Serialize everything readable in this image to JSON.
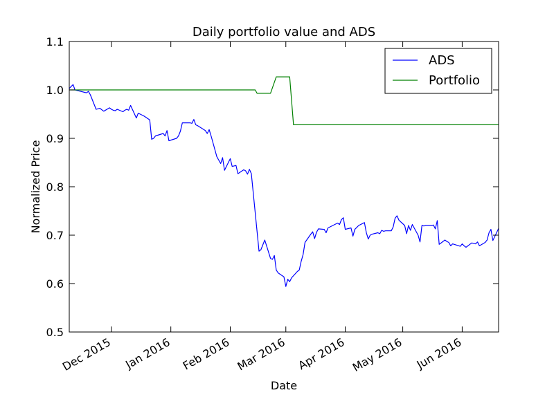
{
  "chart_data": {
    "type": "line",
    "title": "Daily portfolio value and ADS",
    "xlabel": "Date",
    "ylabel": "Normalized Price",
    "x_range": [
      "2015-11-09",
      "2016-06-20"
    ],
    "ylim": [
      0.5,
      1.1
    ],
    "y_ticks": [
      0.5,
      0.6,
      0.7,
      0.8,
      0.9,
      1.0,
      1.1
    ],
    "y_tick_labels": [
      "0.5",
      "0.6",
      "0.7",
      "0.8",
      "0.9",
      "1.0",
      "1.1"
    ],
    "x_ticks": [
      {
        "date": "2015-12-01",
        "label": "Dec 2015"
      },
      {
        "date": "2016-01-01",
        "label": "Jan 2016"
      },
      {
        "date": "2016-02-01",
        "label": "Feb 2016"
      },
      {
        "date": "2016-03-01",
        "label": "Mar 2016"
      },
      {
        "date": "2016-04-01",
        "label": "Apr 2016"
      },
      {
        "date": "2016-05-01",
        "label": "May 2016"
      },
      {
        "date": "2016-06-01",
        "label": "Jun 2016"
      }
    ],
    "grid": false,
    "legend_position": "top-right",
    "series": [
      {
        "name": "ADS",
        "color": "#0000ff",
        "points": [
          [
            "2015-11-09",
            1.003
          ],
          [
            "2015-11-10",
            1.007
          ],
          [
            "2015-11-11",
            1.011
          ],
          [
            "2015-11-12",
            1.0
          ],
          [
            "2015-11-16",
            0.996
          ],
          [
            "2015-11-17",
            0.995
          ],
          [
            "2015-11-18",
            0.994
          ],
          [
            "2015-11-19",
            0.997
          ],
          [
            "2015-11-20",
            0.99
          ],
          [
            "2015-11-23",
            0.96
          ],
          [
            "2015-11-24",
            0.961
          ],
          [
            "2015-11-25",
            0.962
          ],
          [
            "2015-11-27",
            0.956
          ],
          [
            "2015-11-30",
            0.963
          ],
          [
            "2015-12-01",
            0.96
          ],
          [
            "2015-12-02",
            0.958
          ],
          [
            "2015-12-03",
            0.957
          ],
          [
            "2015-12-04",
            0.96
          ],
          [
            "2015-12-07",
            0.955
          ],
          [
            "2015-12-08",
            0.958
          ],
          [
            "2015-12-09",
            0.96
          ],
          [
            "2015-12-10",
            0.958
          ],
          [
            "2015-12-11",
            0.968
          ],
          [
            "2015-12-14",
            0.942
          ],
          [
            "2015-12-15",
            0.952
          ],
          [
            "2015-12-16",
            0.95
          ],
          [
            "2015-12-17",
            0.948
          ],
          [
            "2015-12-18",
            0.946
          ],
          [
            "2015-12-21",
            0.938
          ],
          [
            "2015-12-22",
            0.898
          ],
          [
            "2015-12-23",
            0.9
          ],
          [
            "2015-12-24",
            0.905
          ],
          [
            "2015-12-28",
            0.91
          ],
          [
            "2015-12-29",
            0.905
          ],
          [
            "2015-12-30",
            0.916
          ],
          [
            "2015-12-31",
            0.895
          ],
          [
            "2016-01-04",
            0.9
          ],
          [
            "2016-01-05",
            0.905
          ],
          [
            "2016-01-06",
            0.915
          ],
          [
            "2016-01-07",
            0.932
          ],
          [
            "2016-01-08",
            0.932
          ],
          [
            "2016-01-11",
            0.932
          ],
          [
            "2016-01-12",
            0.931
          ],
          [
            "2016-01-13",
            0.939
          ],
          [
            "2016-01-14",
            0.928
          ],
          [
            "2016-01-15",
            0.926
          ],
          [
            "2016-01-19",
            0.916
          ],
          [
            "2016-01-20",
            0.91
          ],
          [
            "2016-01-21",
            0.918
          ],
          [
            "2016-01-22",
            0.905
          ],
          [
            "2016-01-25",
            0.862
          ],
          [
            "2016-01-26",
            0.855
          ],
          [
            "2016-01-27",
            0.848
          ],
          [
            "2016-01-28",
            0.86
          ],
          [
            "2016-01-29",
            0.834
          ],
          [
            "2016-02-01",
            0.858
          ],
          [
            "2016-02-02",
            0.842
          ],
          [
            "2016-02-03",
            0.843
          ],
          [
            "2016-02-04",
            0.844
          ],
          [
            "2016-02-05",
            0.827
          ],
          [
            "2016-02-08",
            0.835
          ],
          [
            "2016-02-09",
            0.833
          ],
          [
            "2016-02-10",
            0.826
          ],
          [
            "2016-02-11",
            0.836
          ],
          [
            "2016-02-12",
            0.827
          ],
          [
            "2016-02-16",
            0.667
          ],
          [
            "2016-02-17",
            0.67
          ],
          [
            "2016-02-18",
            0.68
          ],
          [
            "2016-02-19",
            0.69
          ],
          [
            "2016-02-22",
            0.652
          ],
          [
            "2016-02-23",
            0.65
          ],
          [
            "2016-02-24",
            0.658
          ],
          [
            "2016-02-25",
            0.628
          ],
          [
            "2016-02-26",
            0.622
          ],
          [
            "2016-02-29",
            0.614
          ],
          [
            "2016-03-01",
            0.594
          ],
          [
            "2016-03-02",
            0.609
          ],
          [
            "2016-03-03",
            0.604
          ],
          [
            "2016-03-04",
            0.612
          ],
          [
            "2016-03-07",
            0.625
          ],
          [
            "2016-03-08",
            0.628
          ],
          [
            "2016-03-09",
            0.646
          ],
          [
            "2016-03-10",
            0.66
          ],
          [
            "2016-03-11",
            0.685
          ],
          [
            "2016-03-14",
            0.702
          ],
          [
            "2016-03-15",
            0.707
          ],
          [
            "2016-03-16",
            0.693
          ],
          [
            "2016-03-17",
            0.706
          ],
          [
            "2016-03-18",
            0.713
          ],
          [
            "2016-03-21",
            0.712
          ],
          [
            "2016-03-22",
            0.705
          ],
          [
            "2016-03-23",
            0.715
          ],
          [
            "2016-03-24",
            0.717
          ],
          [
            "2016-03-28",
            0.725
          ],
          [
            "2016-03-29",
            0.722
          ],
          [
            "2016-03-30",
            0.732
          ],
          [
            "2016-03-31",
            0.736
          ],
          [
            "2016-04-01",
            0.712
          ],
          [
            "2016-04-04",
            0.715
          ],
          [
            "2016-04-05",
            0.698
          ],
          [
            "2016-04-06",
            0.712
          ],
          [
            "2016-04-07",
            0.716
          ],
          [
            "2016-04-08",
            0.72
          ],
          [
            "2016-04-11",
            0.726
          ],
          [
            "2016-04-12",
            0.705
          ],
          [
            "2016-04-13",
            0.692
          ],
          [
            "2016-04-14",
            0.7
          ],
          [
            "2016-04-15",
            0.702
          ],
          [
            "2016-04-18",
            0.705
          ],
          [
            "2016-04-19",
            0.703
          ],
          [
            "2016-04-20",
            0.71
          ],
          [
            "2016-04-21",
            0.708
          ],
          [
            "2016-04-22",
            0.709
          ],
          [
            "2016-04-25",
            0.709
          ],
          [
            "2016-04-26",
            0.717
          ],
          [
            "2016-04-27",
            0.735
          ],
          [
            "2016-04-28",
            0.74
          ],
          [
            "2016-04-29",
            0.731
          ],
          [
            "2016-05-02",
            0.72
          ],
          [
            "2016-05-03",
            0.703
          ],
          [
            "2016-05-04",
            0.72
          ],
          [
            "2016-05-05",
            0.71
          ],
          [
            "2016-05-06",
            0.722
          ],
          [
            "2016-05-09",
            0.7
          ],
          [
            "2016-05-10",
            0.686
          ],
          [
            "2016-05-11",
            0.72
          ],
          [
            "2016-05-12",
            0.719
          ],
          [
            "2016-05-13",
            0.72
          ],
          [
            "2016-05-16",
            0.72
          ],
          [
            "2016-05-17",
            0.721
          ],
          [
            "2016-05-18",
            0.713
          ],
          [
            "2016-05-19",
            0.73
          ],
          [
            "2016-05-20",
            0.681
          ],
          [
            "2016-05-23",
            0.69
          ],
          [
            "2016-05-24",
            0.687
          ],
          [
            "2016-05-25",
            0.685
          ],
          [
            "2016-05-26",
            0.678
          ],
          [
            "2016-05-27",
            0.682
          ],
          [
            "2016-05-31",
            0.677
          ],
          [
            "2016-06-01",
            0.682
          ],
          [
            "2016-06-02",
            0.678
          ],
          [
            "2016-06-03",
            0.675
          ],
          [
            "2016-06-06",
            0.684
          ],
          [
            "2016-06-07",
            0.683
          ],
          [
            "2016-06-08",
            0.682
          ],
          [
            "2016-06-09",
            0.686
          ],
          [
            "2016-06-10",
            0.678
          ],
          [
            "2016-06-13",
            0.685
          ],
          [
            "2016-06-14",
            0.69
          ],
          [
            "2016-06-15",
            0.705
          ],
          [
            "2016-06-16",
            0.712
          ],
          [
            "2016-06-17",
            0.689
          ],
          [
            "2016-06-20",
            0.714
          ]
        ]
      },
      {
        "name": "Portfolio",
        "color": "#008000",
        "points": [
          [
            "2015-11-09",
            1.0
          ],
          [
            "2016-02-14",
            1.0
          ],
          [
            "2016-02-15",
            0.993
          ],
          [
            "2016-02-22",
            0.993
          ],
          [
            "2016-02-25",
            1.027
          ],
          [
            "2016-03-03",
            1.027
          ],
          [
            "2016-03-05",
            0.928
          ],
          [
            "2016-06-20",
            0.928
          ]
        ]
      }
    ]
  }
}
